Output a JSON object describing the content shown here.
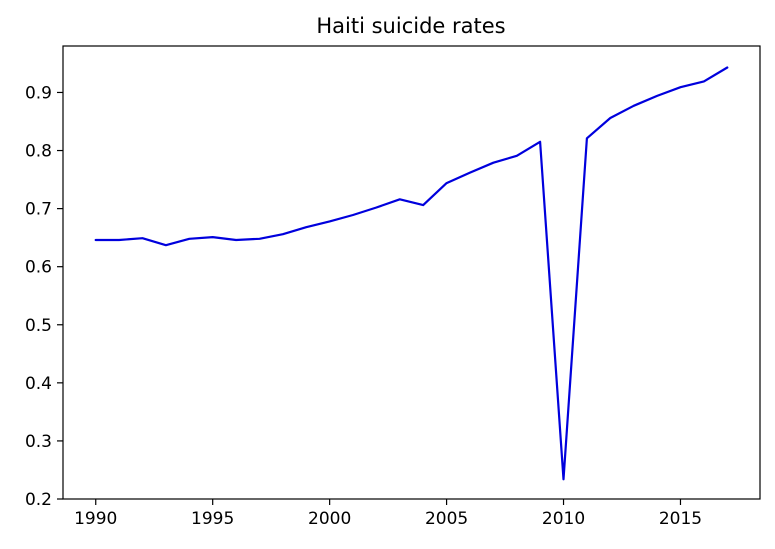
{
  "chart_data": {
    "type": "line",
    "title": "Haiti suicide rates",
    "xlabel": "",
    "ylabel": "",
    "xlim": [
      1988.6,
      2018.4
    ],
    "ylim": [
      0.2,
      0.98
    ],
    "grid": false,
    "line_color": "#0000dd",
    "x_ticks": [
      1990,
      1995,
      2000,
      2005,
      2010,
      2015
    ],
    "y_ticks": [
      0.2,
      0.3,
      0.4,
      0.5,
      0.6,
      0.7,
      0.8,
      0.9
    ],
    "x_tick_labels": [
      "1990",
      "1995",
      "2000",
      "2005",
      "2010",
      "2015"
    ],
    "y_tick_labels": [
      "0.2",
      "0.3",
      "0.4",
      "0.5",
      "0.6",
      "0.7",
      "0.8",
      "0.9"
    ],
    "series": [
      {
        "x": [
          1990,
          1991,
          1992,
          1993,
          1994,
          1995,
          1996,
          1997,
          1998,
          1999,
          2000,
          2001,
          2002,
          2003,
          2004,
          2005,
          2006,
          2007,
          2008,
          2009,
          2010,
          2011,
          2012,
          2013,
          2014,
          2015,
          2016,
          2017
        ],
        "values": [
          0.646,
          0.646,
          0.649,
          0.637,
          0.648,
          0.651,
          0.646,
          0.648,
          0.656,
          0.668,
          0.678,
          0.689,
          0.702,
          0.716,
          0.706,
          0.744,
          0.762,
          0.779,
          0.791,
          0.815,
          0.234,
          0.821,
          0.856,
          0.877,
          0.894,
          0.909,
          0.919,
          0.943
        ]
      }
    ]
  }
}
